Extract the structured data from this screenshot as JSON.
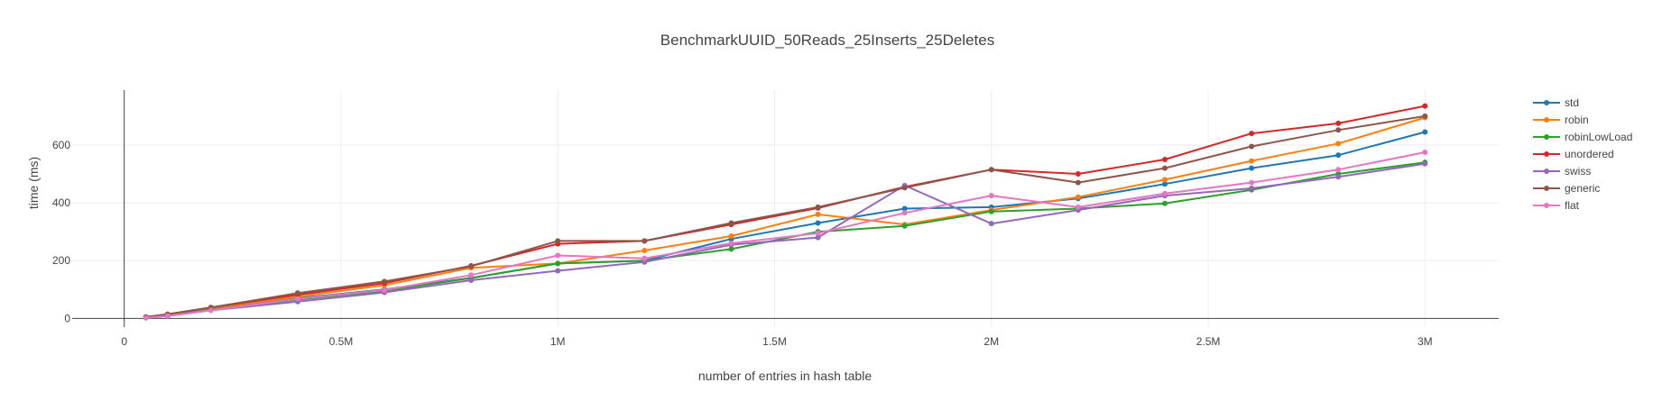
{
  "chart_data": {
    "type": "line",
    "title": "BenchmarkUUID_50Reads_25Inserts_25Deletes",
    "xlabel": "number of entries in hash table",
    "ylabel": "time (ms)",
    "xlim": [
      -120000,
      3170000
    ],
    "ylim": [
      -30,
      790
    ],
    "x_ticks": [
      {
        "value": 0,
        "label": "0"
      },
      {
        "value": 500000,
        "label": "0.5M"
      },
      {
        "value": 1000000,
        "label": "1M"
      },
      {
        "value": 1500000,
        "label": "1.5M"
      },
      {
        "value": 2000000,
        "label": "2M"
      },
      {
        "value": 2500000,
        "label": "2.5M"
      },
      {
        "value": 3000000,
        "label": "3M"
      }
    ],
    "y_ticks": [
      {
        "value": 0,
        "label": "0"
      },
      {
        "value": 200,
        "label": "200"
      },
      {
        "value": 400,
        "label": "400"
      },
      {
        "value": 600,
        "label": "600"
      }
    ],
    "grid": true,
    "legend_position": "right",
    "x": [
      50000,
      100000,
      200000,
      400000,
      600000,
      800000,
      1000000,
      1200000,
      1400000,
      1600000,
      1800000,
      2000000,
      2200000,
      2400000,
      2600000,
      2800000,
      3000000
    ],
    "series": [
      {
        "name": "std",
        "color": "#1f77b4",
        "values": [
          3,
          10,
          32,
          70,
          100,
          140,
          190,
          200,
          275,
          330,
          380,
          385,
          415,
          465,
          520,
          565,
          645
        ]
      },
      {
        "name": "robin",
        "color": "#ff7f0e",
        "values": [
          4,
          12,
          35,
          75,
          115,
          175,
          190,
          235,
          285,
          360,
          325,
          375,
          420,
          480,
          545,
          605,
          695
        ]
      },
      {
        "name": "robinLowLoad",
        "color": "#2ca02c",
        "values": [
          3,
          9,
          30,
          65,
          95,
          140,
          190,
          200,
          240,
          300,
          320,
          370,
          380,
          398,
          445,
          500,
          540
        ]
      },
      {
        "name": "unordered",
        "color": "#d62728",
        "values": [
          5,
          14,
          38,
          82,
          122,
          182,
          258,
          268,
          325,
          382,
          455,
          515,
          500,
          550,
          640,
          675,
          735
        ]
      },
      {
        "name": "swiss",
        "color": "#9467bd",
        "values": [
          2,
          8,
          28,
          58,
          90,
          132,
          165,
          195,
          255,
          280,
          460,
          328,
          375,
          425,
          450,
          490,
          535
        ]
      },
      {
        "name": "generic",
        "color": "#8c564b",
        "values": [
          5,
          15,
          38,
          88,
          128,
          180,
          268,
          268,
          330,
          385,
          452,
          515,
          470,
          520,
          595,
          652,
          700
        ]
      },
      {
        "name": "flat",
        "color": "#e377c2",
        "values": [
          2,
          9,
          28,
          68,
          98,
          150,
          218,
          208,
          260,
          295,
          365,
          425,
          385,
          432,
          470,
          515,
          575
        ]
      }
    ]
  }
}
